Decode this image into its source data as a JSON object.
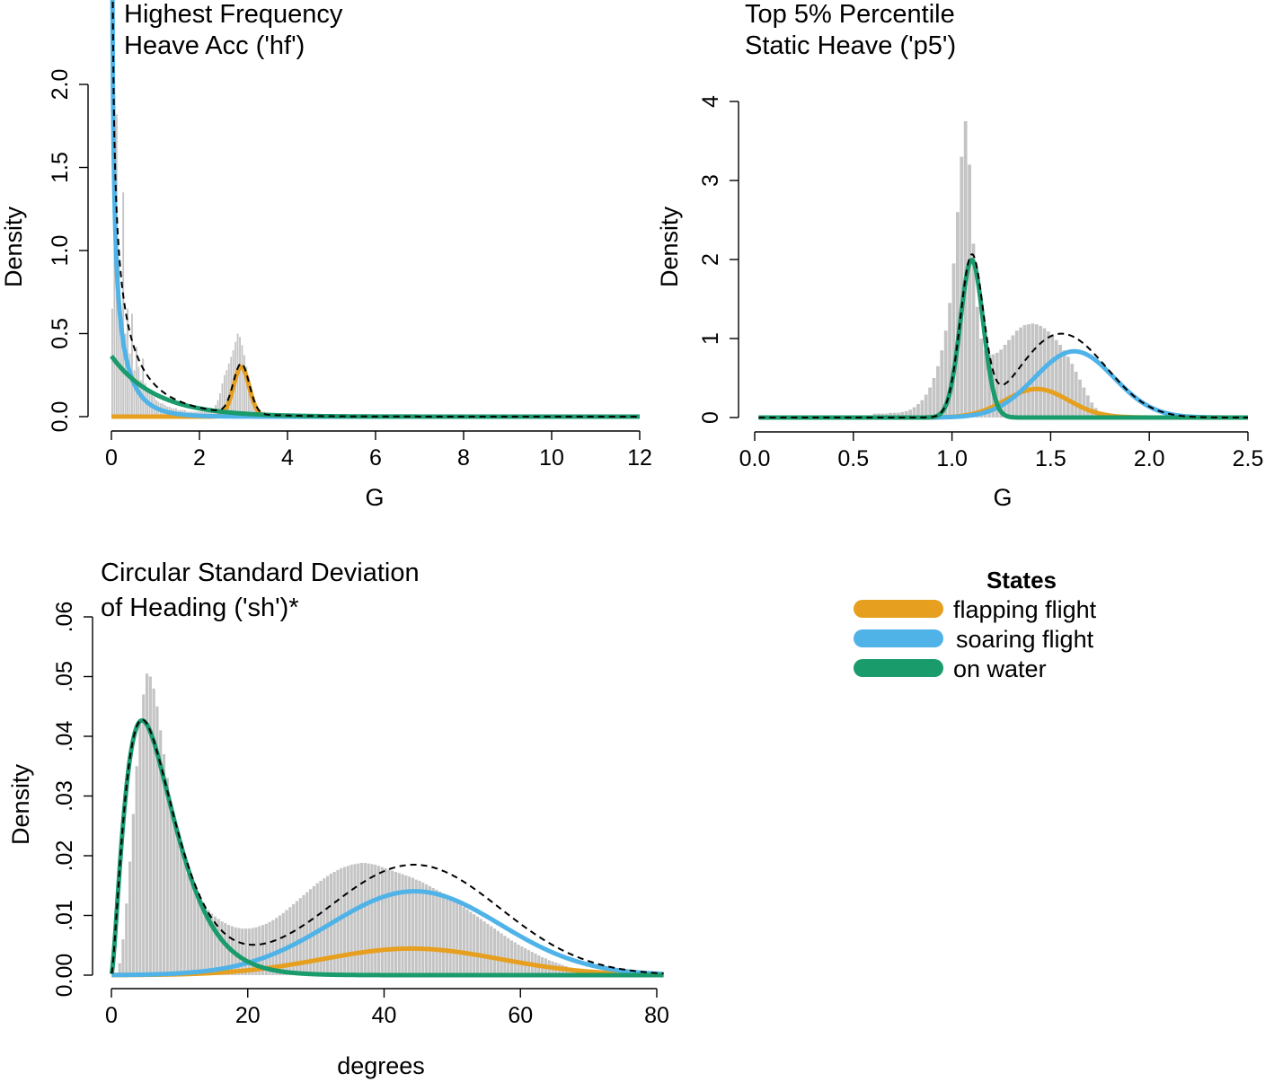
{
  "legend": {
    "title": "States",
    "items": [
      {
        "label": "flapping flight",
        "color": "#E69F1E"
      },
      {
        "label": "soaring flight",
        "color": "#4FB3E8"
      },
      {
        "label": "on water",
        "color": "#1A9B6C"
      }
    ]
  },
  "colors": {
    "histogram": "#c4c4c4",
    "mixture": "#000000",
    "flapping": "#E69F1E",
    "soaring": "#4FB3E8",
    "water": "#1A9B6C"
  },
  "chart_data": [
    {
      "type": "bar",
      "id": "hf",
      "title_line1": "Highest Frequency",
      "title_line2": "Heave Acc ('hf')",
      "xlabel": "G",
      "ylabel": "Density",
      "xlim": [
        0,
        12
      ],
      "ylim": [
        0,
        2.0
      ],
      "xticks": [
        0,
        2,
        4,
        6,
        8,
        10,
        12
      ],
      "xtick_labels": [
        "0",
        "2",
        "4",
        "6",
        "8",
        "10",
        "12"
      ],
      "yticks": [
        0,
        0.5,
        1.0,
        1.5,
        2.0
      ],
      "ytick_labels": [
        "0.0",
        "0.5",
        "1.0",
        "1.5",
        "2.0"
      ],
      "histogram": {
        "bin_start": 0,
        "bin_width": 0.05,
        "density": [
          0.65,
          1.55,
          1.82,
          0.95,
          0.55,
          1.35,
          0.5,
          0.65,
          0.38,
          0.62,
          0.28,
          0.42,
          0.3,
          0.22,
          0.35,
          0.2,
          0.15,
          0.14,
          0.13,
          0.12,
          0.1,
          0.09,
          0.08,
          0.08,
          0.07,
          0.06,
          0.06,
          0.05,
          0.05,
          0.05,
          0.04,
          0.04,
          0.04,
          0.04,
          0.03,
          0.03,
          0.03,
          0.03,
          0.03,
          0.03,
          0.03,
          0.03,
          0.03,
          0.03,
          0.03,
          0.04,
          0.05,
          0.07,
          0.1,
          0.14,
          0.2,
          0.25,
          0.28,
          0.32,
          0.36,
          0.4,
          0.45,
          0.5,
          0.48,
          0.43,
          0.37,
          0.3,
          0.22,
          0.15,
          0.1,
          0.07,
          0.05,
          0.04,
          0.03,
          0.03,
          0.02,
          0.02,
          0.02,
          0.02,
          0.02,
          0.01,
          0.01,
          0.01,
          0.01,
          0.01,
          0.01
        ]
      },
      "components": [
        {
          "state": "flapping flight",
          "dist": "normal",
          "mean": 2.95,
          "sd": 0.18,
          "weight": 0.135
        },
        {
          "state": "soaring flight",
          "dist": "gamma",
          "shape": 0.5,
          "rate": 2.0,
          "weight": 0.5
        },
        {
          "state": "on water",
          "dist": "exponential",
          "rate": 1.0,
          "weight": 0.365
        }
      ]
    },
    {
      "type": "bar",
      "id": "p5",
      "title_line1": "Top 5% Percentile",
      "title_line2": "Static Heave ('p5')",
      "xlabel": "G",
      "ylabel": "Density",
      "xlim": [
        0,
        2.5
      ],
      "ylim": [
        0,
        4
      ],
      "xticks": [
        0,
        0.5,
        1.0,
        1.5,
        2.0,
        2.5
      ],
      "xtick_labels": [
        "0.0",
        "0.5",
        "1.0",
        "1.5",
        "2.0",
        "2.5"
      ],
      "yticks": [
        0,
        1,
        2,
        3,
        4
      ],
      "ytick_labels": [
        "0",
        "1",
        "2",
        "3",
        "4"
      ],
      "histogram": {
        "bin_start": 0.6,
        "bin_width": 0.02,
        "density": [
          0.05,
          0.05,
          0.05,
          0.05,
          0.06,
          0.06,
          0.06,
          0.07,
          0.08,
          0.1,
          0.13,
          0.17,
          0.22,
          0.29,
          0.38,
          0.5,
          0.65,
          0.85,
          1.1,
          1.45,
          1.95,
          2.6,
          3.3,
          3.75,
          3.2,
          2.2,
          1.4,
          1.0,
          0.85,
          0.8,
          0.8,
          0.82,
          0.86,
          0.92,
          0.98,
          1.04,
          1.1,
          1.14,
          1.17,
          1.18,
          1.19,
          1.18,
          1.16,
          1.13,
          1.09,
          1.04,
          0.98,
          0.92,
          0.85,
          0.77,
          0.68,
          0.58,
          0.48,
          0.38,
          0.28,
          0.19,
          0.12,
          0.07,
          0.04,
          0.02
        ]
      },
      "components": [
        {
          "state": "flapping flight",
          "dist": "normal",
          "mean": 1.43,
          "sd": 0.16,
          "weight": 0.145
        },
        {
          "state": "soaring flight",
          "dist": "normal",
          "mean": 1.62,
          "sd": 0.2,
          "weight": 0.42
        },
        {
          "state": "on water",
          "dist": "normal",
          "mean": 1.1,
          "sd": 0.058,
          "weight": 0.29
        }
      ]
    },
    {
      "type": "bar",
      "id": "sh",
      "title_line1": "Circular Standard Deviation",
      "title_line2": "of Heading ('sh')*",
      "xlabel": "degrees",
      "ylabel": "Density",
      "xlim": [
        0,
        80
      ],
      "ylim": [
        0,
        0.06
      ],
      "xticks": [
        0,
        20,
        40,
        60,
        80
      ],
      "xtick_labels": [
        "0",
        "20",
        "40",
        "60",
        "80"
      ],
      "yticks": [
        0,
        0.01,
        0.02,
        0.03,
        0.04,
        0.05,
        0.06
      ],
      "ytick_labels": [
        "0.00",
        ".01",
        ".02",
        ".03",
        ".04",
        ".05",
        ".06"
      ],
      "histogram": {
        "bin_start": 1,
        "bin_width": 0.5,
        "density": [
          0.002,
          0.006,
          0.012,
          0.019,
          0.027,
          0.035,
          0.042,
          0.047,
          0.0505,
          0.05,
          0.048,
          0.045,
          0.041,
          0.037,
          0.033,
          0.029,
          0.026,
          0.023,
          0.021,
          0.019,
          0.017,
          0.0155,
          0.0143,
          0.0133,
          0.0124,
          0.0116,
          0.0109,
          0.0103,
          0.0098,
          0.0094,
          0.009,
          0.0087,
          0.0084,
          0.0082,
          0.008,
          0.0079,
          0.0078,
          0.0078,
          0.0078,
          0.0079,
          0.008,
          0.0082,
          0.0084,
          0.0086,
          0.0089,
          0.0092,
          0.0096,
          0.01,
          0.0104,
          0.0109,
          0.0114,
          0.0119,
          0.0124,
          0.0129,
          0.0134,
          0.0139,
          0.0144,
          0.0149,
          0.0154,
          0.0158,
          0.0162,
          0.0166,
          0.017,
          0.0173,
          0.0176,
          0.0179,
          0.0181,
          0.0183,
          0.0185,
          0.0186,
          0.0187,
          0.0188,
          0.0188,
          0.0187,
          0.0186,
          0.0185,
          0.0183,
          0.0181,
          0.0179,
          0.0177,
          0.0175,
          0.0173,
          0.0171,
          0.0169,
          0.0167,
          0.0165,
          0.0163,
          0.016,
          0.0158,
          0.0155,
          0.0152,
          0.0149,
          0.0146,
          0.0143,
          0.014,
          0.0137,
          0.0133,
          0.013,
          0.0126,
          0.0122,
          0.0118,
          0.0114,
          0.011,
          0.0106,
          0.0102,
          0.0098,
          0.0094,
          0.009,
          0.0086,
          0.0082,
          0.0078,
          0.0074,
          0.007,
          0.0066,
          0.0062,
          0.0058,
          0.0055,
          0.0051,
          0.0048,
          0.0045,
          0.0042,
          0.0039,
          0.0036,
          0.0033,
          0.003,
          0.0028,
          0.0025,
          0.0023,
          0.0021,
          0.0019,
          0.0017,
          0.0015,
          0.0013,
          0.0012,
          0.001,
          0.0009,
          0.0008,
          0.0007,
          0.0006,
          0.0005,
          0.0004,
          0.0004,
          0.0003,
          0.0003,
          0.0002,
          0.0002,
          0.0001,
          0.0001,
          0.0001,
          0.0001,
          0.0001,
          0.0001,
          0.0001
        ]
      },
      "components": [
        {
          "state": "flapping flight",
          "dist": "normal",
          "mean": 44,
          "sd": 13,
          "weight": 0.145
        },
        {
          "state": "soaring flight",
          "dist": "normal",
          "mean": 44.5,
          "sd": 12.5,
          "weight": 0.44
        },
        {
          "state": "on water",
          "dist": "gamma",
          "shape": 2.5,
          "scale": 3.0,
          "weight": 0.415
        }
      ]
    }
  ]
}
